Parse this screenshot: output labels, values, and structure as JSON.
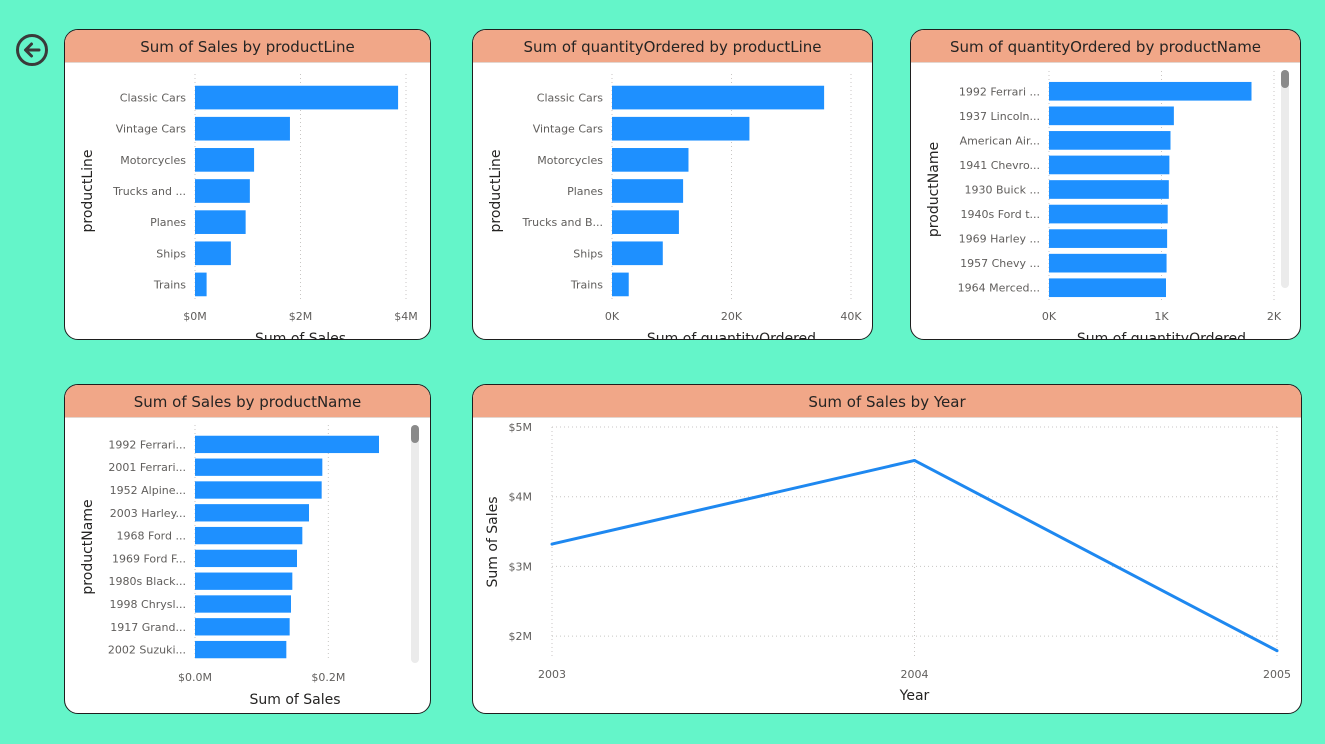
{
  "colors": {
    "bar": "#1e90ff",
    "line": "#1e88f0",
    "title_bg": "#f1a788",
    "background": "#64f5c9"
  },
  "nav": {
    "back_icon": "circle-arrow-left-icon"
  },
  "chart_data": [
    {
      "id": "sales-by-productline",
      "type": "bar",
      "orientation": "horizontal",
      "title": "Sum of Sales by productLine",
      "xlabel": "Sum of Sales",
      "ylabel": "productLine",
      "categories": [
        "Classic Cars",
        "Vintage Cars",
        "Motorcycles",
        "Trucks and ...",
        "Planes",
        "Ships",
        "Trains"
      ],
      "values": [
        3850000,
        1800000,
        1120000,
        1040000,
        960000,
        680000,
        220000
      ],
      "xlim": [
        0,
        4000000
      ],
      "xticks": [
        0,
        2000000,
        4000000
      ],
      "xtick_labels": [
        "$0M",
        "$2M",
        "$4M"
      ],
      "grid": true,
      "scrollbar": false
    },
    {
      "id": "qty-by-productline",
      "type": "bar",
      "orientation": "horizontal",
      "title": "Sum of quantityOrdered by productLine",
      "xlabel": "Sum of quantityOrdered",
      "ylabel": "productLine",
      "categories": [
        "Classic Cars",
        "Vintage Cars",
        "Motorcycles",
        "Planes",
        "Trucks and B...",
        "Ships",
        "Trains"
      ],
      "values": [
        35500,
        23000,
        12800,
        11900,
        11200,
        8500,
        2800
      ],
      "xlim": [
        0,
        40000
      ],
      "xticks": [
        0,
        20000,
        40000
      ],
      "xtick_labels": [
        "0K",
        "20K",
        "40K"
      ],
      "grid": true,
      "scrollbar": false
    },
    {
      "id": "qty-by-productname",
      "type": "bar",
      "orientation": "horizontal",
      "title": "Sum of quantityOrdered by productName",
      "xlabel": "Sum of quantityOrdered",
      "ylabel": "productName",
      "categories": [
        "1992 Ferrari ...",
        "1937 Lincoln...",
        "American Air...",
        "1941 Chevro...",
        "1930 Buick ...",
        "1940s Ford t...",
        "1969 Harley ...",
        "1957 Chevy ...",
        "1964 Merced..."
      ],
      "values": [
        1800,
        1110,
        1080,
        1070,
        1065,
        1055,
        1050,
        1045,
        1040
      ],
      "xlim": [
        0,
        2000
      ],
      "xticks": [
        0,
        1000,
        2000
      ],
      "xtick_labels": [
        "0K",
        "1K",
        "2K"
      ],
      "grid": true,
      "scrollbar": true
    },
    {
      "id": "sales-by-productname",
      "type": "bar",
      "orientation": "horizontal",
      "title": "Sum of Sales by productName",
      "xlabel": "Sum of Sales",
      "ylabel": "productName",
      "categories": [
        "1992 Ferrari...",
        "2001 Ferrari...",
        "1952 Alpine...",
        "2003 Harley...",
        "1968 Ford ...",
        "1969 Ford F...",
        "1980s Black...",
        "1998 Chrysl...",
        "1917 Grand...",
        "2002 Suzuki..."
      ],
      "values": [
        276000,
        191000,
        190000,
        171000,
        161000,
        153000,
        146000,
        144000,
        142000,
        137000
      ],
      "xlim": [
        0,
        300000
      ],
      "xticks": [
        0,
        200000
      ],
      "xtick_labels": [
        "$0.0M",
        "$0.2M"
      ],
      "grid": true,
      "scrollbar": true
    },
    {
      "id": "sales-by-year",
      "type": "line",
      "title": "Sum of Sales by Year",
      "xlabel": "Year",
      "ylabel": "Sum of Sales",
      "x": [
        2003,
        2004,
        2005
      ],
      "y": [
        3320000,
        4520000,
        1790000
      ],
      "ylim": [
        1700000,
        5000000
      ],
      "yticks": [
        2000000,
        3000000,
        4000000,
        5000000
      ],
      "ytick_labels": [
        "$2M",
        "$3M",
        "$4M",
        "$5M"
      ],
      "xtick_labels": [
        "2003",
        "2004",
        "2005"
      ],
      "grid": true
    }
  ]
}
